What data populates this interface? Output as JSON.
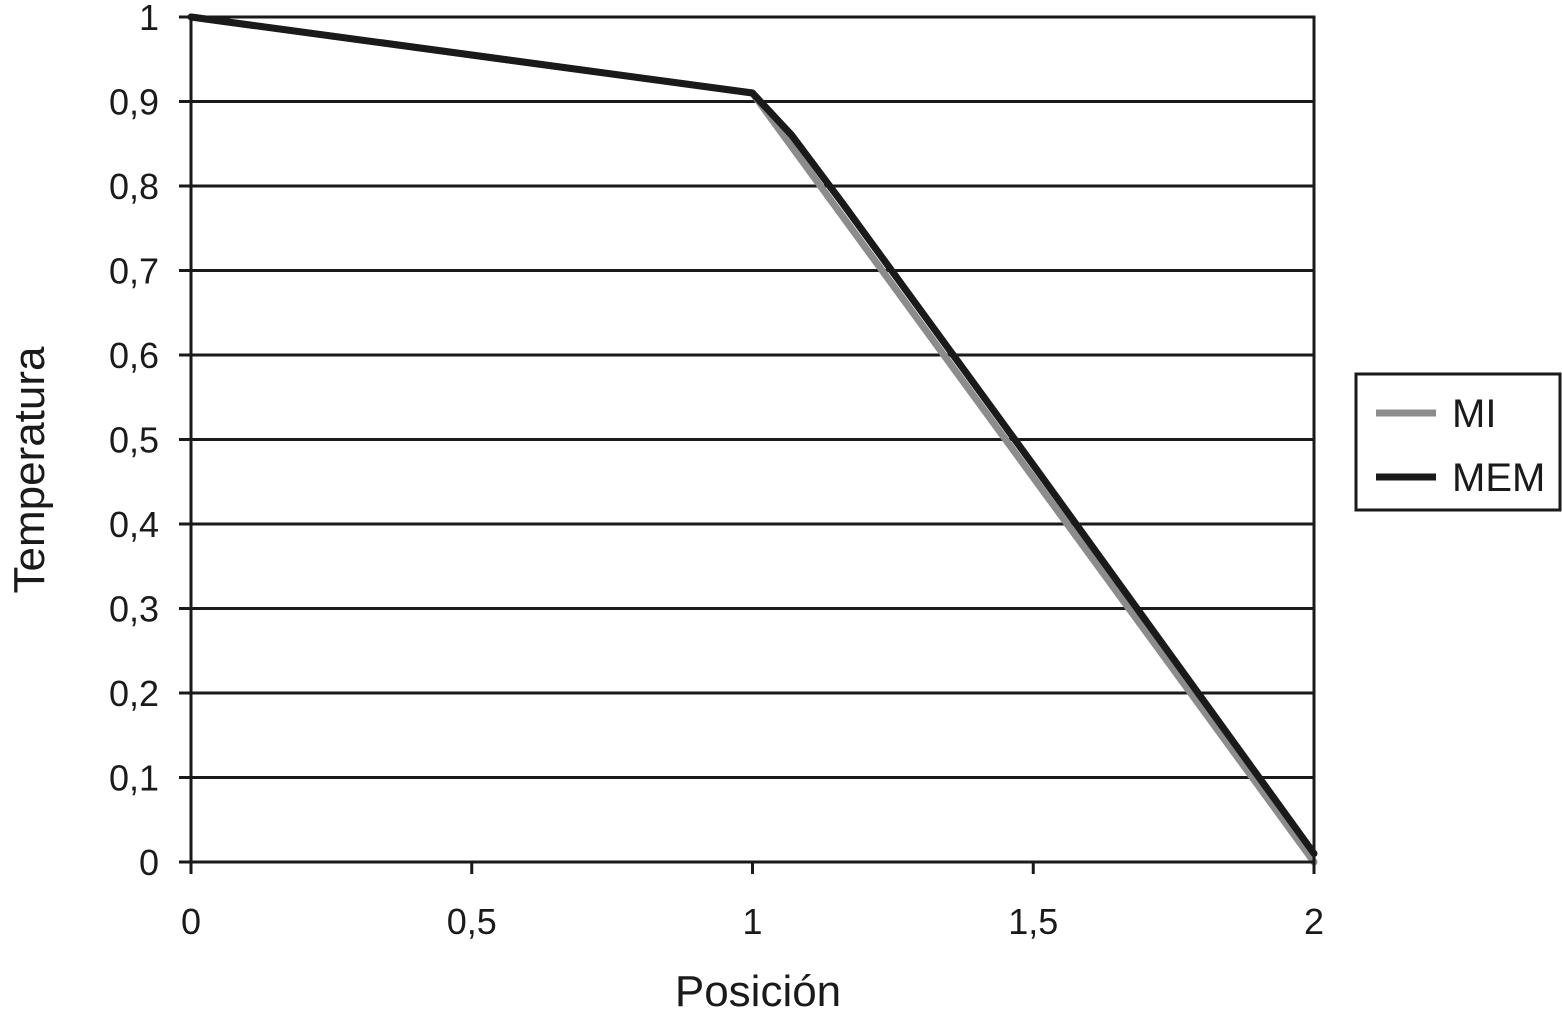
{
  "chart_data": {
    "type": "line",
    "title": "",
    "xlabel": "Posición",
    "ylabel": "Temperatura",
    "xlim": [
      0,
      2
    ],
    "ylim": [
      0,
      1
    ],
    "x_ticks": [
      0,
      0.5,
      1,
      1.5,
      2
    ],
    "x_tick_labels": [
      "0",
      "0,5",
      "1",
      "1,5",
      "2"
    ],
    "y_ticks": [
      0,
      0.1,
      0.2,
      0.3,
      0.4,
      0.5,
      0.6,
      0.7,
      0.8,
      0.9,
      1
    ],
    "y_tick_labels": [
      "0",
      "0,1",
      "0,2",
      "0,3",
      "0,4",
      "0,5",
      "0,6",
      "0,7",
      "0,8",
      "0,9",
      "1"
    ],
    "grid": "horizontal",
    "legend_position": "right",
    "series": [
      {
        "name": "MI",
        "color": "#8c8c8c",
        "x": [
          0,
          1,
          1.5,
          2
        ],
        "y": [
          1,
          0.91,
          0.455,
          0
        ]
      },
      {
        "name": "MEM",
        "color": "#1a1a1a",
        "x": [
          0,
          1,
          1.07,
          1.16,
          1.5,
          2
        ],
        "y": [
          1,
          0.91,
          0.86,
          0.78,
          0.47,
          0.01
        ]
      }
    ]
  }
}
